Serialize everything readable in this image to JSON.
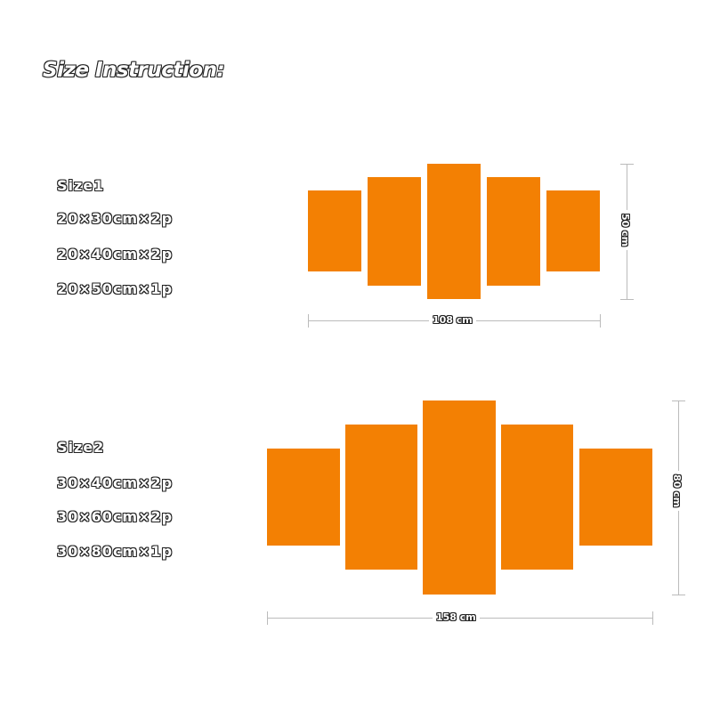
{
  "title": "Size Instruction:",
  "sizes": [
    {
      "name": "Size1",
      "lines": [
        "20×30cm×2p",
        "20×40cm×2p",
        "20×50cm×1p"
      ],
      "width_label": "108 cm",
      "height_label": "50 cm"
    },
    {
      "name": "Size2",
      "lines": [
        "30×40cm×2p",
        "30×60cm×2p",
        "30×80cm×1p"
      ],
      "width_label": "158 cm",
      "height_label": "80 cm"
    }
  ],
  "colors": {
    "panel": "#f38003",
    "dimension_line": "#bbbbbb"
  }
}
